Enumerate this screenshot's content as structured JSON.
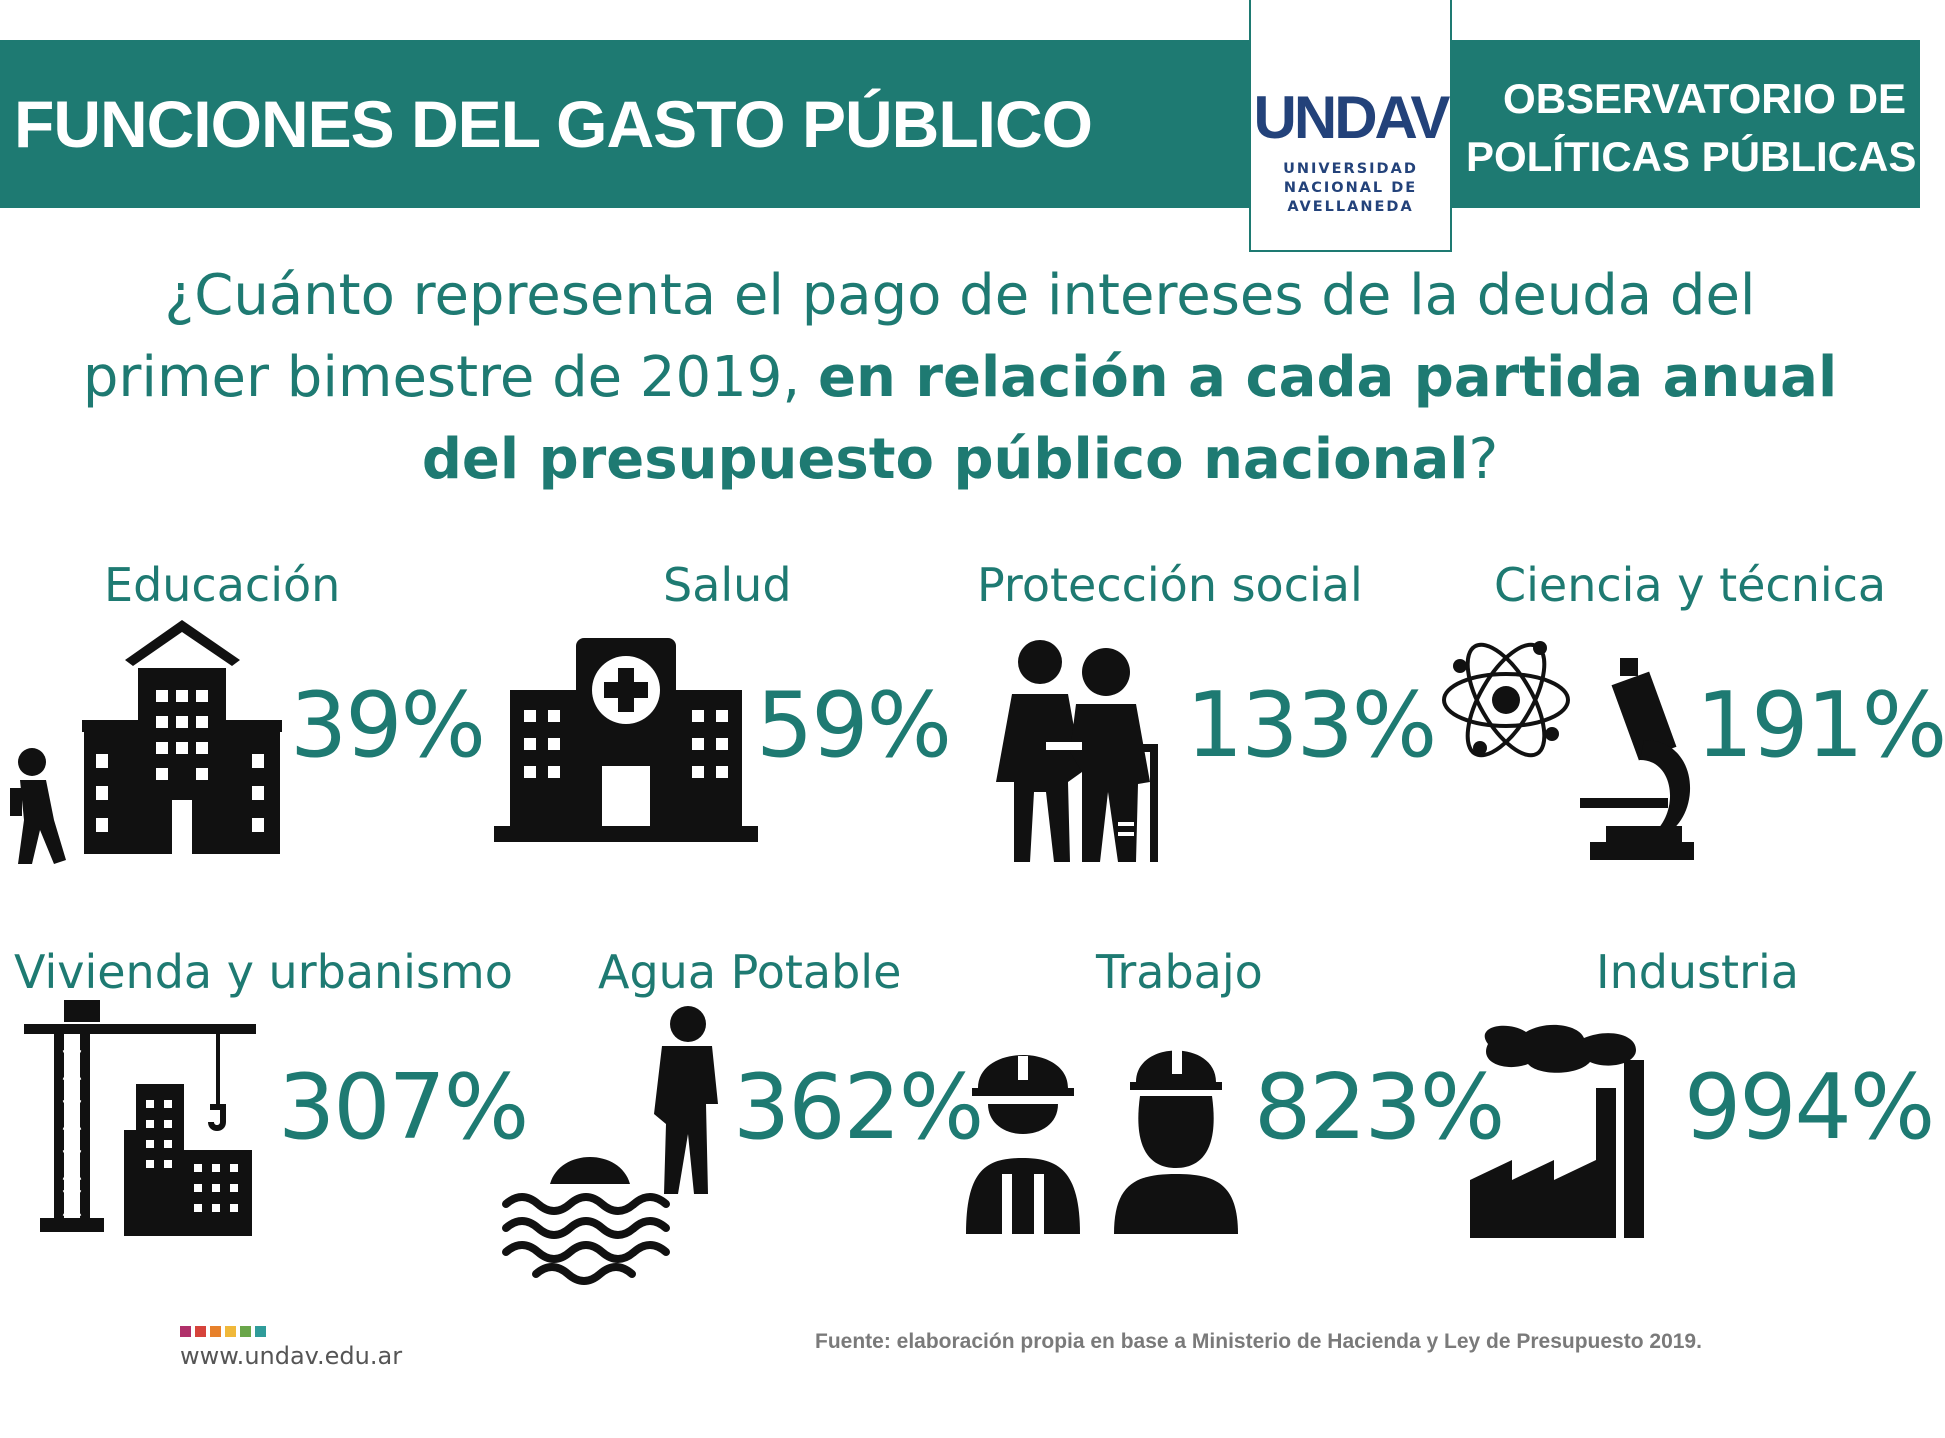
{
  "header": {
    "title": "FUNCIONES DEL GASTO PÚBLICO",
    "logo_word": "UNDAV",
    "logo_sub": [
      "UNIVERSIDAD",
      "NACIONAL DE",
      "AVELLANEDA"
    ],
    "observatorio": [
      "OBSERVATORIO DE",
      "POLÍTICAS PÚBLICAS"
    ]
  },
  "question": {
    "line1": "¿Cuánto representa el pago de intereses de la deuda del",
    "line2_normal": "primer bimestre de 2019, ",
    "line2_bold": "en relación a cada partida anual",
    "line3_bold": "del presupuesto público nacional",
    "line3_end": "?"
  },
  "categories": [
    {
      "label": "Educación",
      "value": "39%",
      "icon": "school-icon"
    },
    {
      "label": "Salud",
      "value": "59%",
      "icon": "hospital-icon"
    },
    {
      "label": "Protección social",
      "value": "133%",
      "icon": "elderly-couple-icon"
    },
    {
      "label": "Ciencia y técnica",
      "value": "191%",
      "icon": "atom-microscope-icon"
    },
    {
      "label": "Vivienda y urbanismo",
      "value": "307%",
      "icon": "crane-building-icon"
    },
    {
      "label": "Agua Potable",
      "value": "362%",
      "icon": "water-worker-icon"
    },
    {
      "label": "Trabajo",
      "value": "823%",
      "icon": "workers-icon"
    },
    {
      "label": "Industria",
      "value": "994%",
      "icon": "factory-icon"
    }
  ],
  "footer": {
    "url": "www.undav.edu.ar",
    "fuente": "Fuente: elaboración propia en base a Ministerio de Hacienda y Ley de Presupuesto 2019.",
    "dot_colors": [
      "#b0306a",
      "#d6433b",
      "#e7812b",
      "#f0b83a",
      "#6aa64a",
      "#2f9c9a"
    ]
  },
  "colors": {
    "accent": "#1e7a72",
    "logo": "#23427a"
  }
}
